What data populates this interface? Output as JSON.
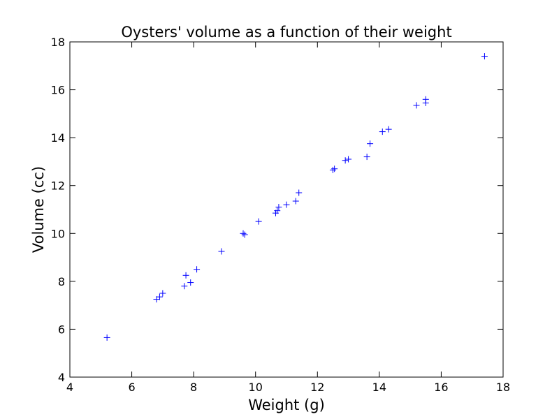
{
  "chart_data": {
    "type": "scatter",
    "title": "Oysters' volume as a function of their weight",
    "xlabel": "Weight (g)",
    "ylabel": "Volume (cc)",
    "xlim": [
      4,
      18
    ],
    "ylim": [
      4,
      18
    ],
    "xticks": [
      "4",
      "6",
      "8",
      "10",
      "12",
      "14",
      "16",
      "18"
    ],
    "yticks": [
      "4",
      "6",
      "8",
      "10",
      "12",
      "14",
      "16",
      "18"
    ],
    "grid": false,
    "marker": "+",
    "marker_color": "#0000ff",
    "series": [
      {
        "x": [
          5.2,
          6.8,
          6.9,
          7.0,
          7.7,
          7.75,
          7.9,
          8.1,
          8.9,
          9.6,
          9.65,
          10.1,
          10.65,
          10.7,
          10.75,
          11.0,
          11.3,
          11.4,
          12.5,
          12.55,
          12.9,
          13.0,
          13.6,
          13.7,
          14.1,
          14.3,
          15.2,
          15.5,
          15.5,
          17.4
        ],
        "y": [
          5.65,
          7.25,
          7.35,
          7.5,
          7.8,
          8.25,
          7.95,
          8.5,
          9.25,
          10.0,
          9.95,
          10.5,
          10.85,
          10.95,
          11.1,
          11.2,
          11.35,
          11.7,
          12.65,
          12.7,
          13.05,
          13.1,
          13.2,
          13.75,
          14.25,
          14.35,
          15.35,
          15.45,
          15.6,
          17.4
        ]
      }
    ]
  }
}
